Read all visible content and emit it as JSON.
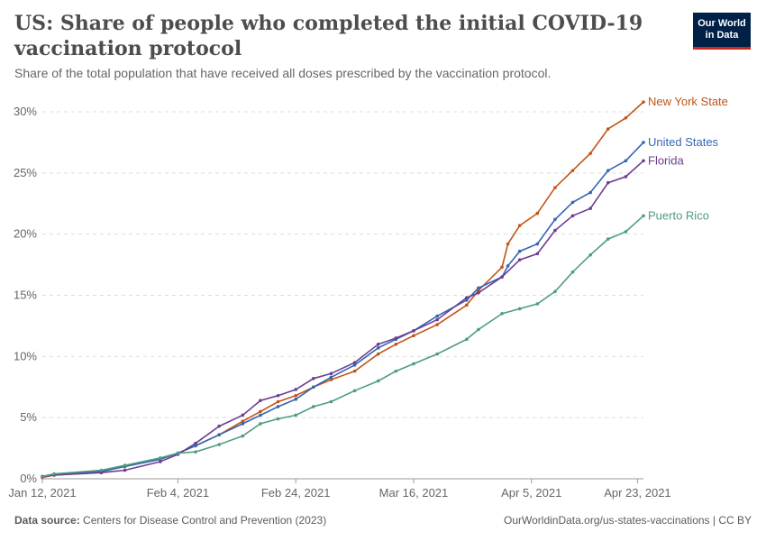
{
  "header": {
    "title": "US: Share of people who completed the initial COVID-19 vaccination protocol",
    "subtitle": "Share of the total population that have received all doses prescribed by the vaccination protocol.",
    "logo_line1": "Our World",
    "logo_line2": "in Data"
  },
  "footer": {
    "source_label": "Data source:",
    "source_text": "Centers for Disease Control and Prevention (2023)",
    "url_text": "OurWorldinData.org/us-states-vaccinations | CC BY"
  },
  "chart_data": {
    "type": "line",
    "x_type": "date",
    "x_range": [
      "2021-01-12",
      "2021-04-24"
    ],
    "x_ticks": [
      {
        "date": "2021-01-12",
        "label": "Jan 12, 2021"
      },
      {
        "date": "2021-02-04",
        "label": "Feb 4, 2021"
      },
      {
        "date": "2021-02-24",
        "label": "Feb 24, 2021"
      },
      {
        "date": "2021-03-16",
        "label": "Mar 16, 2021"
      },
      {
        "date": "2021-04-05",
        "label": "Apr 5, 2021"
      },
      {
        "date": "2021-04-23",
        "label": "Apr 23, 2021"
      }
    ],
    "ylim": [
      0,
      30
    ],
    "y_ticks": [
      0,
      5,
      10,
      15,
      20,
      25,
      30
    ],
    "y_tick_labels": [
      "0%",
      "5%",
      "10%",
      "15%",
      "20%",
      "25%",
      "30%"
    ],
    "grid": "horizontal dashed",
    "series": [
      {
        "name": "New York State",
        "color": "#c15516",
        "points": [
          {
            "x": "2021-01-12",
            "y": 0.1
          },
          {
            "x": "2021-01-14",
            "y": 0.3
          },
          {
            "x": "2021-01-22",
            "y": 0.6
          },
          {
            "x": "2021-01-26",
            "y": 1.0
          },
          {
            "x": "2021-02-01",
            "y": 1.6
          },
          {
            "x": "2021-02-04",
            "y": 2.1
          },
          {
            "x": "2021-02-07",
            "y": 2.7
          },
          {
            "x": "2021-02-11",
            "y": 3.6
          },
          {
            "x": "2021-02-15",
            "y": 4.7
          },
          {
            "x": "2021-02-18",
            "y": 5.5
          },
          {
            "x": "2021-02-21",
            "y": 6.3
          },
          {
            "x": "2021-02-24",
            "y": 6.8
          },
          {
            "x": "2021-02-27",
            "y": 7.5
          },
          {
            "x": "2021-03-02",
            "y": 8.1
          },
          {
            "x": "2021-03-06",
            "y": 8.8
          },
          {
            "x": "2021-03-10",
            "y": 10.2
          },
          {
            "x": "2021-03-13",
            "y": 11.0
          },
          {
            "x": "2021-03-16",
            "y": 11.7
          },
          {
            "x": "2021-03-20",
            "y": 12.6
          },
          {
            "x": "2021-03-25",
            "y": 14.2
          },
          {
            "x": "2021-03-27",
            "y": 15.4
          },
          {
            "x": "2021-03-31",
            "y": 17.3
          },
          {
            "x": "2021-04-01",
            "y": 19.2
          },
          {
            "x": "2021-04-03",
            "y": 20.7
          },
          {
            "x": "2021-04-06",
            "y": 21.7
          },
          {
            "x": "2021-04-09",
            "y": 23.8
          },
          {
            "x": "2021-04-12",
            "y": 25.2
          },
          {
            "x": "2021-04-15",
            "y": 26.6
          },
          {
            "x": "2021-04-18",
            "y": 28.6
          },
          {
            "x": "2021-04-21",
            "y": 29.5
          },
          {
            "x": "2021-04-24",
            "y": 30.8
          }
        ]
      },
      {
        "name": "United States",
        "color": "#3566b3",
        "points": [
          {
            "x": "2021-01-12",
            "y": 0.2
          },
          {
            "x": "2021-01-14",
            "y": 0.3
          },
          {
            "x": "2021-01-22",
            "y": 0.6
          },
          {
            "x": "2021-01-26",
            "y": 1.0
          },
          {
            "x": "2021-02-01",
            "y": 1.6
          },
          {
            "x": "2021-02-04",
            "y": 2.1
          },
          {
            "x": "2021-02-07",
            "y": 2.7
          },
          {
            "x": "2021-02-11",
            "y": 3.6
          },
          {
            "x": "2021-02-15",
            "y": 4.5
          },
          {
            "x": "2021-02-18",
            "y": 5.2
          },
          {
            "x": "2021-02-21",
            "y": 5.9
          },
          {
            "x": "2021-02-24",
            "y": 6.5
          },
          {
            "x": "2021-02-27",
            "y": 7.5
          },
          {
            "x": "2021-03-02",
            "y": 8.3
          },
          {
            "x": "2021-03-06",
            "y": 9.3
          },
          {
            "x": "2021-03-10",
            "y": 10.7
          },
          {
            "x": "2021-03-13",
            "y": 11.4
          },
          {
            "x": "2021-03-16",
            "y": 12.1
          },
          {
            "x": "2021-03-20",
            "y": 13.3
          },
          {
            "x": "2021-03-25",
            "y": 14.6
          },
          {
            "x": "2021-03-27",
            "y": 15.6
          },
          {
            "x": "2021-03-31",
            "y": 16.5
          },
          {
            "x": "2021-04-01",
            "y": 17.4
          },
          {
            "x": "2021-04-03",
            "y": 18.6
          },
          {
            "x": "2021-04-06",
            "y": 19.2
          },
          {
            "x": "2021-04-09",
            "y": 21.2
          },
          {
            "x": "2021-04-12",
            "y": 22.6
          },
          {
            "x": "2021-04-15",
            "y": 23.4
          },
          {
            "x": "2021-04-18",
            "y": 25.2
          },
          {
            "x": "2021-04-21",
            "y": 26.0
          },
          {
            "x": "2021-04-24",
            "y": 27.5
          }
        ]
      },
      {
        "name": "Florida",
        "color": "#6d3e91",
        "points": [
          {
            "x": "2021-01-12",
            "y": 0.2
          },
          {
            "x": "2021-01-14",
            "y": 0.3
          },
          {
            "x": "2021-01-22",
            "y": 0.5
          },
          {
            "x": "2021-01-26",
            "y": 0.7
          },
          {
            "x": "2021-02-01",
            "y": 1.4
          },
          {
            "x": "2021-02-04",
            "y": 2.0
          },
          {
            "x": "2021-02-07",
            "y": 2.9
          },
          {
            "x": "2021-02-11",
            "y": 4.3
          },
          {
            "x": "2021-02-15",
            "y": 5.2
          },
          {
            "x": "2021-02-18",
            "y": 6.4
          },
          {
            "x": "2021-02-21",
            "y": 6.8
          },
          {
            "x": "2021-02-24",
            "y": 7.3
          },
          {
            "x": "2021-02-27",
            "y": 8.2
          },
          {
            "x": "2021-03-02",
            "y": 8.6
          },
          {
            "x": "2021-03-06",
            "y": 9.5
          },
          {
            "x": "2021-03-10",
            "y": 11.0
          },
          {
            "x": "2021-03-13",
            "y": 11.5
          },
          {
            "x": "2021-03-16",
            "y": 12.1
          },
          {
            "x": "2021-03-20",
            "y": 13.0
          },
          {
            "x": "2021-03-25",
            "y": 14.8
          },
          {
            "x": "2021-03-27",
            "y": 15.2
          },
          {
            "x": "2021-03-31",
            "y": 16.5
          },
          {
            "x": "2021-04-03",
            "y": 17.9
          },
          {
            "x": "2021-04-06",
            "y": 18.4
          },
          {
            "x": "2021-04-09",
            "y": 20.3
          },
          {
            "x": "2021-04-12",
            "y": 21.5
          },
          {
            "x": "2021-04-15",
            "y": 22.1
          },
          {
            "x": "2021-04-18",
            "y": 24.2
          },
          {
            "x": "2021-04-21",
            "y": 24.7
          },
          {
            "x": "2021-04-24",
            "y": 26.0
          }
        ]
      },
      {
        "name": "Puerto Rico",
        "color": "#4e9d81",
        "points": [
          {
            "x": "2021-01-12",
            "y": 0.2
          },
          {
            "x": "2021-01-14",
            "y": 0.4
          },
          {
            "x": "2021-01-22",
            "y": 0.7
          },
          {
            "x": "2021-01-26",
            "y": 1.1
          },
          {
            "x": "2021-02-01",
            "y": 1.7
          },
          {
            "x": "2021-02-04",
            "y": 2.1
          },
          {
            "x": "2021-02-07",
            "y": 2.2
          },
          {
            "x": "2021-02-11",
            "y": 2.8
          },
          {
            "x": "2021-02-15",
            "y": 3.5
          },
          {
            "x": "2021-02-18",
            "y": 4.5
          },
          {
            "x": "2021-02-21",
            "y": 4.9
          },
          {
            "x": "2021-02-24",
            "y": 5.2
          },
          {
            "x": "2021-02-27",
            "y": 5.9
          },
          {
            "x": "2021-03-02",
            "y": 6.3
          },
          {
            "x": "2021-03-06",
            "y": 7.2
          },
          {
            "x": "2021-03-10",
            "y": 8.0
          },
          {
            "x": "2021-03-13",
            "y": 8.8
          },
          {
            "x": "2021-03-16",
            "y": 9.4
          },
          {
            "x": "2021-03-20",
            "y": 10.2
          },
          {
            "x": "2021-03-25",
            "y": 11.4
          },
          {
            "x": "2021-03-27",
            "y": 12.2
          },
          {
            "x": "2021-03-31",
            "y": 13.5
          },
          {
            "x": "2021-04-03",
            "y": 13.9
          },
          {
            "x": "2021-04-06",
            "y": 14.3
          },
          {
            "x": "2021-04-09",
            "y": 15.3
          },
          {
            "x": "2021-04-12",
            "y": 16.9
          },
          {
            "x": "2021-04-15",
            "y": 18.3
          },
          {
            "x": "2021-04-18",
            "y": 19.6
          },
          {
            "x": "2021-04-21",
            "y": 20.2
          },
          {
            "x": "2021-04-24",
            "y": 21.5
          }
        ]
      }
    ]
  }
}
